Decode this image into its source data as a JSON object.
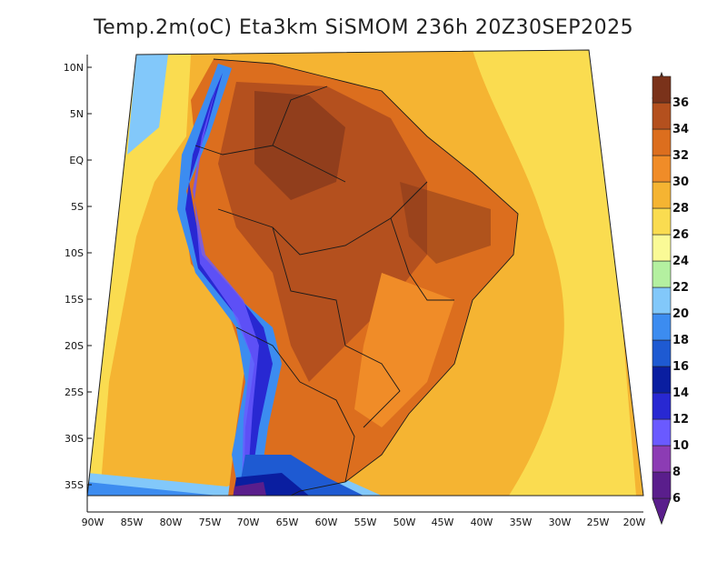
{
  "title": "Temp.2m(oC) Eta3km SiSMOM 236h 20Z30SEP2025",
  "lat_labels": [
    "10N",
    "5N",
    "EQ",
    "5S",
    "10S",
    "15S",
    "20S",
    "25S",
    "30S",
    "35S"
  ],
  "lon_labels": [
    "90W",
    "85W",
    "80W",
    "75W",
    "70W",
    "65W",
    "60W",
    "55W",
    "50W",
    "45W",
    "40W",
    "35W",
    "30W",
    "25W",
    "20W"
  ],
  "colorbar": {
    "labels": [
      "6",
      "8",
      "10",
      "12",
      "14",
      "16",
      "18",
      "20",
      "22",
      "24",
      "26",
      "28",
      "30",
      "32",
      "34",
      "36"
    ],
    "colors": [
      "#5a1e8c",
      "#8c3cb4",
      "#6a5aff",
      "#2828d2",
      "#0a1ea0",
      "#1e5ad2",
      "#3c8cf0",
      "#82c8fa",
      "#b4f0a0",
      "#fafa96",
      "#fadc50",
      "#f5b432",
      "#f08c28",
      "#dc6e1e",
      "#b4501e",
      "#7a321a"
    ]
  },
  "colors": {
    "ocean_warm": "#f5b432",
    "ocean_mild": "#fadc50",
    "land_hot": "#b4501e",
    "land_very_hot": "#7a321a",
    "andes_cold": "#2828d2",
    "south_cold": "#0a1ea0"
  }
}
